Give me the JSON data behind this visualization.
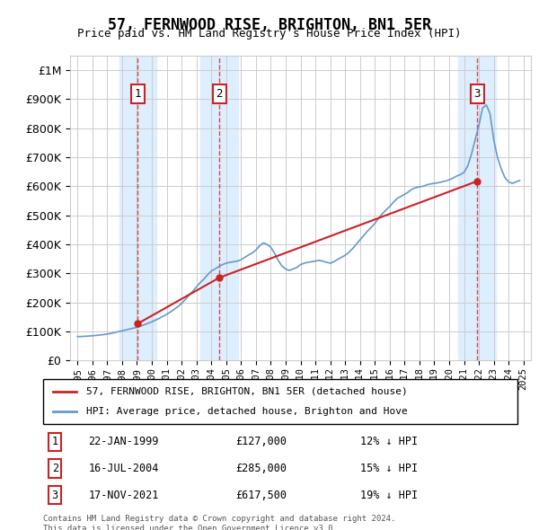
{
  "title": "57, FERNWOOD RISE, BRIGHTON, BN1 5ER",
  "subtitle": "Price paid vs. HM Land Registry's House Price Index (HPI)",
  "legend_property": "57, FERNWOOD RISE, BRIGHTON, BN1 5ER (detached house)",
  "legend_hpi": "HPI: Average price, detached house, Brighton and Hove",
  "footnote": "Contains HM Land Registry data © Crown copyright and database right 2024.\nThis data is licensed under the Open Government Licence v3.0.",
  "sales": [
    {
      "label": "1",
      "date": "22-JAN-1999",
      "price": 127000,
      "pct": "12% ↓ HPI",
      "x": 1999.06
    },
    {
      "label": "2",
      "date": "16-JUL-2004",
      "price": 285000,
      "pct": "15% ↓ HPI",
      "x": 2004.54
    },
    {
      "label": "3",
      "date": "17-NOV-2021",
      "price": 617500,
      "pct": "19% ↓ HPI",
      "x": 2021.88
    }
  ],
  "hpi_color": "#6699cc",
  "property_color": "#cc2222",
  "vline_color": "#cc2222",
  "shade_color": "#ddeeff",
  "grid_color": "#cccccc",
  "background_color": "#ffffff",
  "ylim": [
    0,
    1050000
  ],
  "yticks": [
    0,
    100000,
    200000,
    300000,
    400000,
    500000,
    600000,
    700000,
    800000,
    900000,
    1000000
  ],
  "xlim": [
    1994.5,
    2025.5
  ],
  "hpi_data": {
    "years": [
      1995.0,
      1995.25,
      1995.5,
      1995.75,
      1996.0,
      1996.25,
      1996.5,
      1996.75,
      1997.0,
      1997.25,
      1997.5,
      1997.75,
      1998.0,
      1998.25,
      1998.5,
      1998.75,
      1999.0,
      1999.25,
      1999.5,
      1999.75,
      2000.0,
      2000.25,
      2000.5,
      2000.75,
      2001.0,
      2001.25,
      2001.5,
      2001.75,
      2002.0,
      2002.25,
      2002.5,
      2002.75,
      2003.0,
      2003.25,
      2003.5,
      2003.75,
      2004.0,
      2004.25,
      2004.5,
      2004.75,
      2005.0,
      2005.25,
      2005.5,
      2005.75,
      2006.0,
      2006.25,
      2006.5,
      2006.75,
      2007.0,
      2007.25,
      2007.5,
      2007.75,
      2008.0,
      2008.25,
      2008.5,
      2008.75,
      2009.0,
      2009.25,
      2009.5,
      2009.75,
      2010.0,
      2010.25,
      2010.5,
      2010.75,
      2011.0,
      2011.25,
      2011.5,
      2011.75,
      2012.0,
      2012.25,
      2012.5,
      2012.75,
      2013.0,
      2013.25,
      2013.5,
      2013.75,
      2014.0,
      2014.25,
      2014.5,
      2014.75,
      2015.0,
      2015.25,
      2015.5,
      2015.75,
      2016.0,
      2016.25,
      2016.5,
      2016.75,
      2017.0,
      2017.25,
      2017.5,
      2017.75,
      2018.0,
      2018.25,
      2018.5,
      2018.75,
      2019.0,
      2019.25,
      2019.5,
      2019.75,
      2020.0,
      2020.25,
      2020.5,
      2020.75,
      2021.0,
      2021.25,
      2021.5,
      2021.75,
      2022.0,
      2022.25,
      2022.5,
      2022.75,
      2023.0,
      2023.25,
      2023.5,
      2023.75,
      2024.0,
      2024.25,
      2024.5,
      2024.75
    ],
    "values": [
      82000,
      82500,
      83000,
      84000,
      85000,
      86000,
      87500,
      89000,
      91000,
      93000,
      96000,
      99000,
      102000,
      105000,
      108000,
      111000,
      114000,
      118000,
      123000,
      128000,
      133000,
      139000,
      145000,
      152000,
      159000,
      167000,
      176000,
      185000,
      196000,
      210000,
      224000,
      238000,
      253000,
      268000,
      280000,
      295000,
      308000,
      315000,
      323000,
      330000,
      335000,
      338000,
      340000,
      342000,
      347000,
      355000,
      363000,
      370000,
      380000,
      395000,
      405000,
      400000,
      390000,
      370000,
      345000,
      325000,
      315000,
      310000,
      315000,
      320000,
      330000,
      335000,
      338000,
      340000,
      342000,
      345000,
      342000,
      338000,
      335000,
      340000,
      348000,
      355000,
      362000,
      372000,
      385000,
      400000,
      415000,
      430000,
      445000,
      458000,
      472000,
      490000,
      505000,
      518000,
      530000,
      545000,
      558000,
      565000,
      572000,
      580000,
      590000,
      595000,
      598000,
      600000,
      605000,
      608000,
      610000,
      612000,
      615000,
      618000,
      622000,
      628000,
      635000,
      640000,
      648000,
      670000,
      710000,
      760000,
      810000,
      870000,
      880000,
      850000,
      760000,
      700000,
      660000,
      630000,
      615000,
      610000,
      615000,
      620000
    ]
  },
  "property_data": {
    "years": [
      1999.06,
      2004.54,
      2021.88
    ],
    "values": [
      127000,
      285000,
      617500
    ]
  }
}
